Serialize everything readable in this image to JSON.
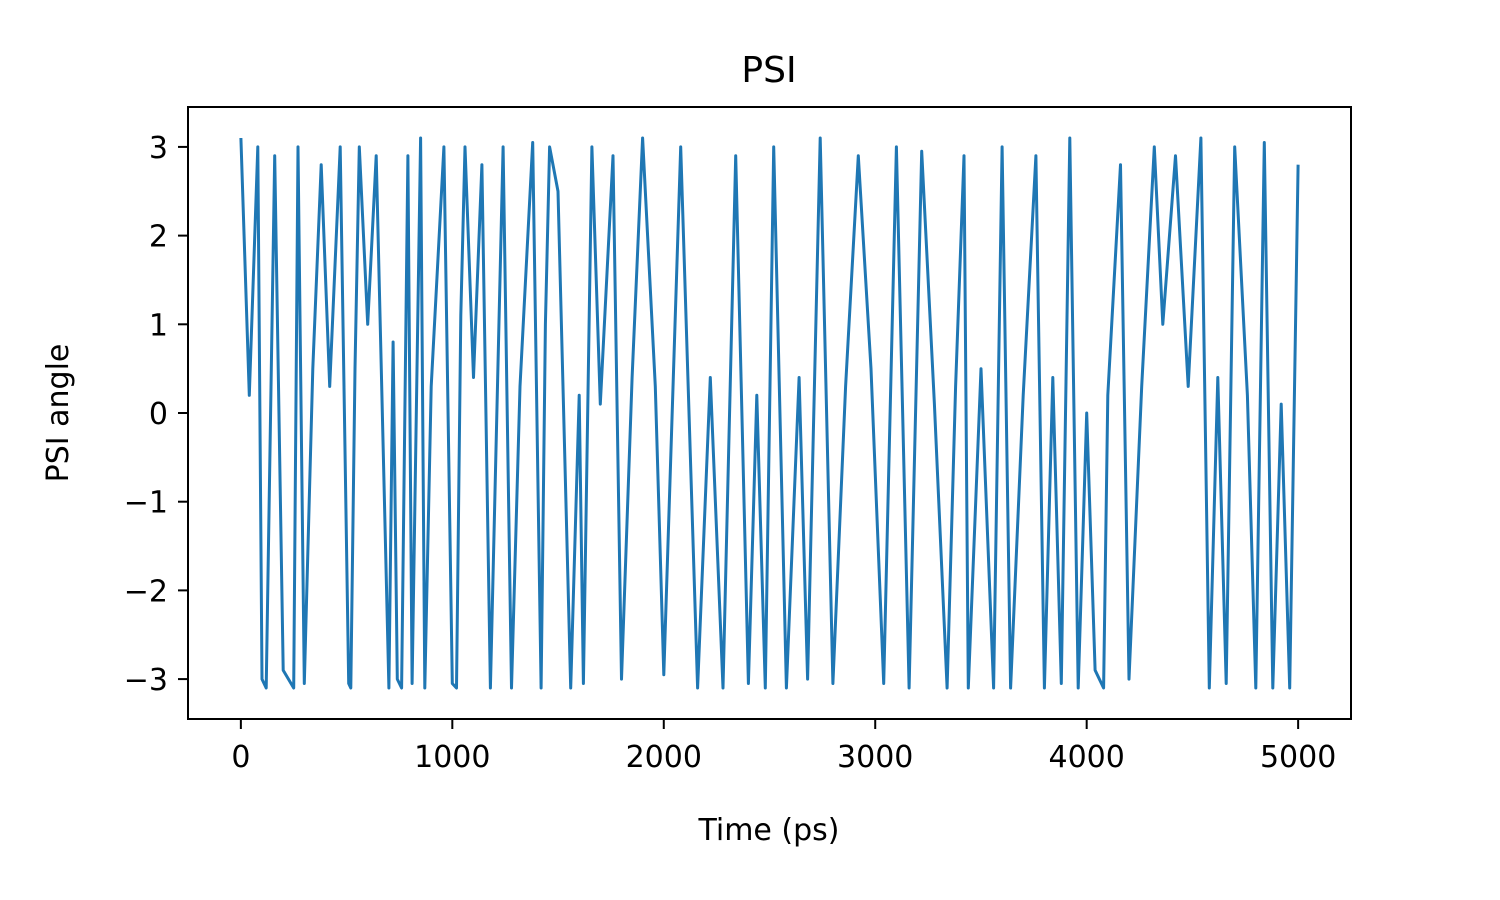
{
  "chart_data": {
    "type": "line",
    "title": "PSI",
    "xlabel": "Time (ps)",
    "ylabel": "PSI angle",
    "xlim": [
      -250,
      5250
    ],
    "ylim": [
      -3.45,
      3.45
    ],
    "x_ticks": [
      0,
      1000,
      2000,
      3000,
      4000,
      5000
    ],
    "x_tick_labels": [
      "0",
      "1000",
      "2000",
      "3000",
      "4000",
      "5000"
    ],
    "y_ticks": [
      -3,
      -2,
      -1,
      0,
      1,
      2,
      3
    ],
    "y_tick_labels": [
      "−3",
      "−2",
      "−1",
      "0",
      "1",
      "2",
      "3"
    ],
    "grid": false,
    "legend": "none",
    "series": [
      {
        "color": "#1f77b4",
        "x": [
          0,
          40,
          80,
          100,
          120,
          160,
          200,
          250,
          270,
          300,
          340,
          380,
          420,
          470,
          510,
          520,
          540,
          560,
          600,
          640,
          700,
          720,
          740,
          760,
          790,
          810,
          850,
          870,
          900,
          960,
          1000,
          1020,
          1040,
          1060,
          1100,
          1140,
          1180,
          1240,
          1280,
          1320,
          1380,
          1420,
          1440,
          1460,
          1500,
          1560,
          1600,
          1620,
          1660,
          1700,
          1760,
          1800,
          1850,
          1900,
          1960,
          2000,
          2080,
          2160,
          2220,
          2280,
          2340,
          2400,
          2440,
          2480,
          2520,
          2580,
          2640,
          2680,
          2740,
          2800,
          2860,
          2920,
          2980,
          3040,
          3100,
          3160,
          3220,
          3280,
          3340,
          3380,
          3420,
          3440,
          3500,
          3560,
          3600,
          3640,
          3700,
          3760,
          3800,
          3840,
          3880,
          3920,
          3960,
          4000,
          4040,
          4080,
          4100,
          4160,
          4200,
          4260,
          4320,
          4360,
          4420,
          4480,
          4540,
          4580,
          4620,
          4660,
          4700,
          4760,
          4800,
          4840,
          4880,
          4920,
          4960,
          5000
        ],
        "y": [
          3.1,
          0.2,
          3.0,
          -3.0,
          -3.1,
          2.9,
          -2.9,
          -3.1,
          3.0,
          -3.05,
          0.5,
          2.8,
          0.3,
          3.0,
          -3.05,
          -3.1,
          0.5,
          3.0,
          1.0,
          2.9,
          -3.1,
          0.8,
          -3.0,
          -3.1,
          2.9,
          -3.05,
          3.1,
          -3.1,
          0.3,
          3.0,
          -3.05,
          -3.1,
          1.1,
          3.0,
          0.4,
          2.8,
          -3.1,
          3.0,
          -3.1,
          0.3,
          3.05,
          -3.1,
          1.0,
          3.0,
          2.5,
          -3.1,
          0.2,
          -3.05,
          3.0,
          0.1,
          2.9,
          -3.0,
          0.4,
          3.1,
          0.3,
          -2.95,
          3.0,
          -3.1,
          0.4,
          -3.1,
          2.9,
          -3.05,
          0.2,
          -3.1,
          3.0,
          -3.1,
          0.4,
          -3.0,
          3.1,
          -3.05,
          0.3,
          2.9,
          0.5,
          -3.05,
          3.0,
          -3.1,
          2.95,
          0.1,
          -3.1,
          0.3,
          2.9,
          -3.1,
          0.5,
          -3.1,
          3.0,
          -3.1,
          0.2,
          2.9,
          -3.1,
          0.4,
          -3.05,
          3.1,
          -3.1,
          0.0,
          -2.9,
          -3.1,
          0.2,
          2.8,
          -3.0,
          0.3,
          3.0,
          1.0,
          2.9,
          0.3,
          3.1,
          -3.1,
          0.4,
          -3.05,
          3.0,
          0.2,
          -3.1,
          3.05,
          -3.1,
          0.1,
          -3.1,
          2.8
        ]
      }
    ]
  }
}
